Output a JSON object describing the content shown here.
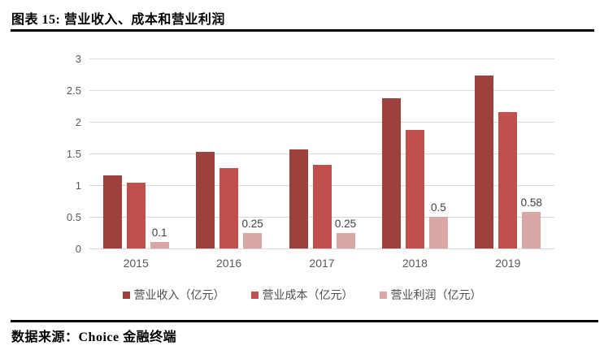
{
  "header": {
    "title": "图表 15: 营业收入、成本和营业利润"
  },
  "footer": {
    "source": "数据来源：Choice 金融终端"
  },
  "colors": {
    "revenue": "#9E403E",
    "cost": "#C0504D",
    "profit": "#D9A7A5",
    "gridline": "#d9d9d9",
    "axis_text": "#595959"
  },
  "chart_data": {
    "type": "bar",
    "title": "",
    "xlabel": "",
    "ylabel": "",
    "categories": [
      "2015",
      "2016",
      "2017",
      "2018",
      "2019"
    ],
    "series": [
      {
        "name": "营业收入（亿元）",
        "color": "#9E403E",
        "values": [
          1.15,
          1.53,
          1.57,
          2.37,
          2.73
        ]
      },
      {
        "name": "营业成本（亿元）",
        "color": "#C0504D",
        "values": [
          1.04,
          1.27,
          1.32,
          1.87,
          2.16
        ]
      },
      {
        "name": "营业利润（亿元）",
        "color": "#D9A7A5",
        "values": [
          0.1,
          0.25,
          0.25,
          0.5,
          0.58
        ],
        "data_labels": [
          "0.1",
          "0.25",
          "0.25",
          "0.5",
          "0.58"
        ]
      }
    ],
    "ylim": [
      0,
      3
    ],
    "ytick_step": 0.5,
    "yticks": [
      "0",
      "0.5",
      "1",
      "1.5",
      "2",
      "2.5",
      "3"
    ],
    "grid": true,
    "legend_position": "bottom"
  }
}
